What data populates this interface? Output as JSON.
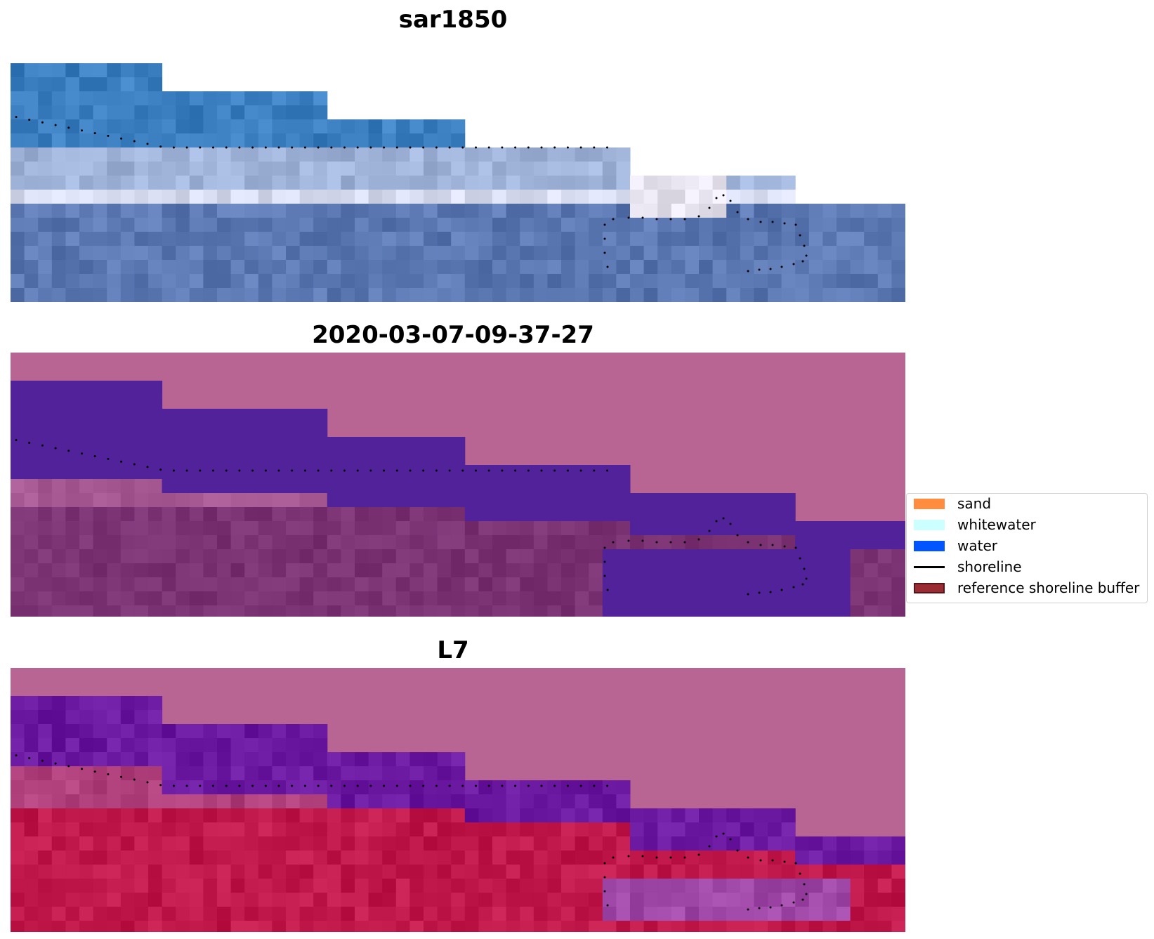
{
  "panels": [
    {
      "title": "sar1850",
      "style": "rgb"
    },
    {
      "title": "2020-03-07-09-37-27",
      "style": "classified"
    },
    {
      "title": "L7",
      "style": "falsecolor"
    }
  ],
  "legend": {
    "items": [
      {
        "label": "sand",
        "color": "#ff8c3f",
        "kind": "patch"
      },
      {
        "label": "whitewater",
        "color": "#ccffff",
        "kind": "patch"
      },
      {
        "label": "water",
        "color": "#0055ff",
        "kind": "patch"
      },
      {
        "label": "shoreline",
        "color": "#000000",
        "kind": "line"
      },
      {
        "label": "reference shoreline buffer",
        "color": "#9b2b33",
        "kind": "patch",
        "edge": "#5a1418"
      }
    ]
  },
  "colors": {
    "nodata_pink": "#b96594",
    "class_water": "#52229a",
    "land_mauve": "#7a3273",
    "ocean_blue": "#3c7fc0",
    "beach_white": "#d8dcf0",
    "l7_red": "#c0184a",
    "l7_purple": "#6a18a0"
  }
}
